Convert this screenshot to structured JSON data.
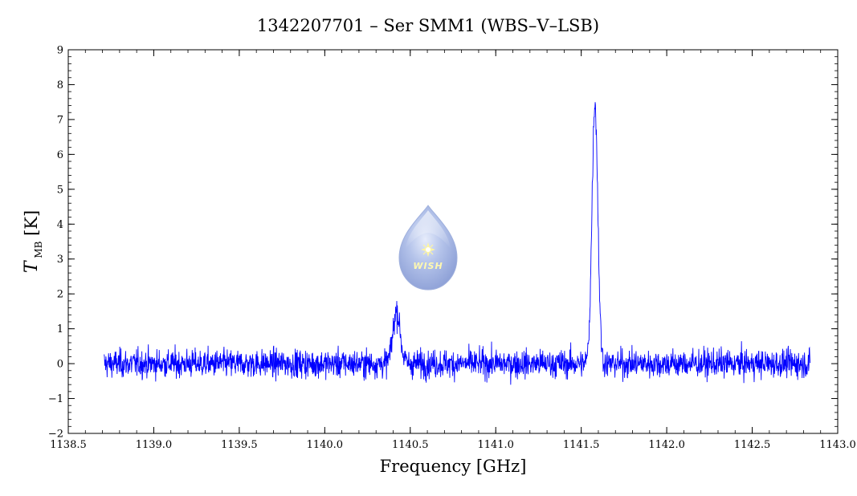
{
  "chart_data": {
    "type": "line",
    "title": "1342207701 – Ser SMM1 (WBS–V–LSB)",
    "xlabel": "Frequency [GHz]",
    "ylabel": {
      "symbol": "T",
      "subscript": "MB",
      "unit": "[K]"
    },
    "xlim": [
      1138.5,
      1143.0
    ],
    "ylim": [
      -2,
      9
    ],
    "x_ticks": [
      1138.5,
      1139.0,
      1139.5,
      1140.0,
      1140.5,
      1141.0,
      1141.5,
      1142.0,
      1142.5,
      1143.0
    ],
    "x_tick_labels": [
      "1138.5",
      "1139.0",
      "1139.5",
      "1140.0",
      "1140.5",
      "1141.0",
      "1141.5",
      "1142.0",
      "1142.5",
      "1143.0"
    ],
    "y_ticks": [
      -2,
      -1,
      0,
      1,
      2,
      3,
      4,
      5,
      6,
      7,
      8,
      9
    ],
    "y_tick_labels": [
      "−2",
      "−1",
      "0",
      "1",
      "2",
      "3",
      "4",
      "5",
      "6",
      "7",
      "8",
      "9"
    ],
    "grid": false,
    "series": [
      {
        "color": "#0000ff",
        "x_range": [
          1138.71,
          1142.84
        ],
        "baseline": 0.0,
        "noise_rms": 0.2,
        "lines": [
          {
            "center": 1140.42,
            "peak": 1.5,
            "fwhm": 0.05
          },
          {
            "center": 1141.58,
            "peak": 7.5,
            "fwhm": 0.04
          }
        ],
        "max_value": 7.9,
        "min_value": -1.1
      }
    ],
    "logo": {
      "text": "WISH"
    }
  }
}
